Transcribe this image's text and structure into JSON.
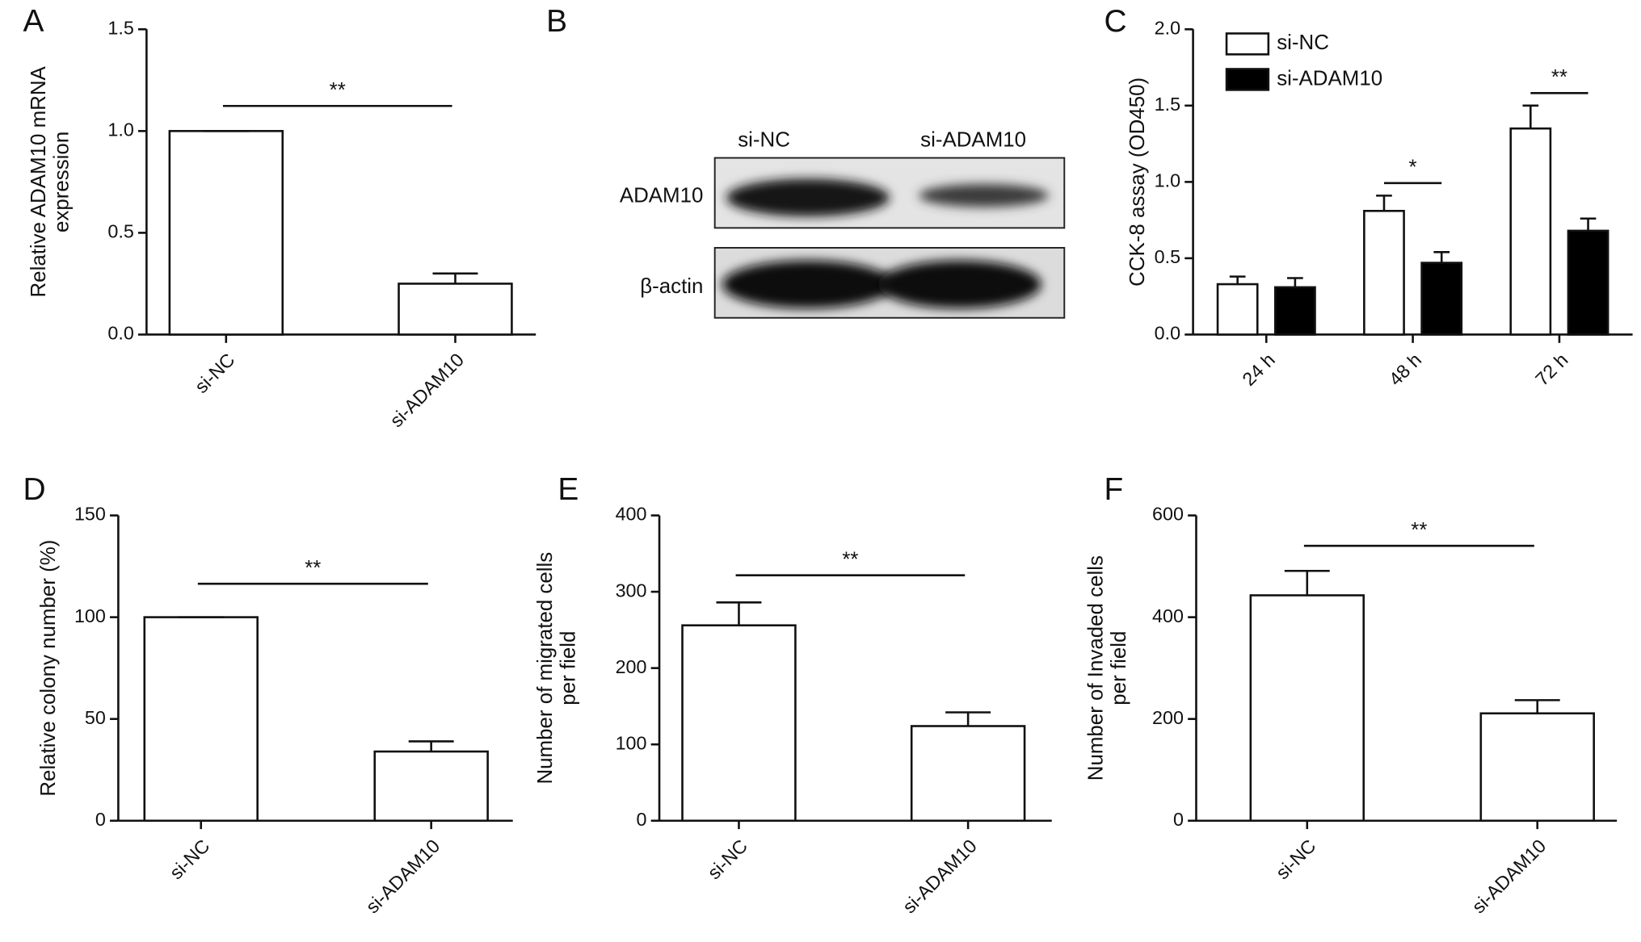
{
  "chart_data": [
    {
      "type": "bar",
      "panel": "A",
      "ylabel": [
        "Relative ADAM10 mRNA",
        "expression"
      ],
      "categories": [
        "si-NC",
        "si-ADAM10"
      ],
      "values": [
        1.0,
        0.25
      ],
      "errors": [
        0,
        0.05
      ],
      "color": "#ffffff",
      "ylim": [
        0,
        1.5
      ],
      "yticks": [
        {
          "value": 0,
          "label": "0.0"
        },
        {
          "value": 0.5,
          "label": "0.5"
        },
        {
          "value": 1,
          "label": "1.0"
        },
        {
          "value": 1.5,
          "label": "1.5"
        }
      ],
      "annotations": [
        "**"
      ]
    },
    {
      "type": "blot",
      "panel": "B",
      "lanes": [
        "si-NC",
        "si-ADAM10"
      ],
      "rows": [
        "ADAM10",
        "β-actin"
      ]
    },
    {
      "type": "grouped-bar",
      "panel": "C",
      "ylabel": [
        "CCK-8 assay (OD450)"
      ],
      "categories": [
        "24 h",
        "48 h",
        "72 h"
      ],
      "series": [
        {
          "name": "si-NC",
          "color": "#ffffff",
          "values": [
            0.33,
            0.81,
            1.35
          ],
          "errors": [
            0.05,
            0.1,
            0.15
          ]
        },
        {
          "name": "si-ADAM10",
          "color": "#000000",
          "values": [
            0.31,
            0.47,
            0.68
          ],
          "errors": [
            0.06,
            0.07,
            0.08
          ]
        }
      ],
      "ylim": [
        0,
        2
      ],
      "yticks": [
        {
          "value": 0,
          "label": "0.0"
        },
        {
          "value": 0.5,
          "label": "0.5"
        },
        {
          "value": 1,
          "label": "1.0"
        },
        {
          "value": 1.5,
          "label": "1.5"
        },
        {
          "value": 2,
          "label": "2.0"
        }
      ],
      "legend": "top-left",
      "annotations": [
        null,
        "*",
        "**"
      ]
    },
    {
      "type": "bar",
      "panel": "D",
      "ylabel": [
        "Relative colony number (%)"
      ],
      "categories": [
        "si-NC",
        "si-ADAM10"
      ],
      "values": [
        100,
        34
      ],
      "errors": [
        0,
        5
      ],
      "color": "#ffffff",
      "ylim": [
        0,
        150
      ],
      "yticks": [
        0,
        50,
        100,
        150
      ],
      "annotations": [
        "**"
      ]
    },
    {
      "type": "bar",
      "panel": "E",
      "ylabel": [
        "Number of migrated cells",
        "per field"
      ],
      "categories": [
        "si-NC",
        "si-ADAM10"
      ],
      "values": [
        256,
        124
      ],
      "errors": [
        30,
        18
      ],
      "color": "#ffffff",
      "ylim": [
        0,
        400
      ],
      "yticks": [
        0,
        100,
        200,
        300,
        400
      ],
      "annotations": [
        "**"
      ]
    },
    {
      "type": "bar",
      "panel": "F",
      "ylabel": [
        "Number of Invaded cells",
        "per field"
      ],
      "categories": [
        "si-NC",
        "si-ADAM10"
      ],
      "values": [
        443,
        211
      ],
      "errors": [
        48,
        26
      ],
      "color": "#ffffff",
      "ylim": [
        0,
        600
      ],
      "yticks": [
        0,
        200,
        400,
        600
      ],
      "annotations": [
        "**"
      ]
    }
  ]
}
